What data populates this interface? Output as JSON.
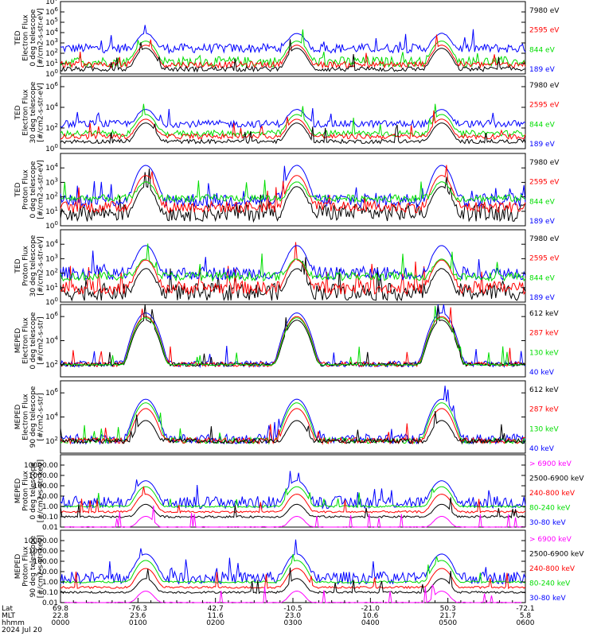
{
  "chart_data": {
    "type": "line",
    "panels": [
      {
        "ylabel": [
          "TED",
          "Electron Flux",
          "0 deg telescope",
          "[#/cm2-s-str-eV]"
        ],
        "ylim": [
          1,
          10000000
        ],
        "scale": "log",
        "yticks": [
          {
            "v": 1,
            "t": "10",
            "e": "0"
          },
          {
            "v": 10,
            "t": "10",
            "e": "1"
          },
          {
            "v": 100,
            "t": "10",
            "e": "2"
          },
          {
            "v": 1000,
            "t": "10",
            "e": "3"
          },
          {
            "v": 10000,
            "t": "10",
            "e": "4"
          },
          {
            "v": 100000,
            "t": "10",
            "e": "5"
          },
          {
            "v": 1000000,
            "t": "10",
            "e": "6"
          },
          {
            "v": 10000000,
            "t": "10",
            "e": "7"
          }
        ],
        "legend": [
          {
            "name": "7980 eV",
            "color": "#000000"
          },
          {
            "name": "2595 eV",
            "color": "#ff0000"
          },
          {
            "name": "844 eV",
            "color": "#00dd00"
          },
          {
            "name": "189 eV",
            "color": "#0000ff"
          }
        ],
        "series": [
          {
            "color": "#0000ff",
            "base": 300,
            "peak": 8000,
            "noise": 0.9
          },
          {
            "color": "#00dd00",
            "base": 15,
            "peak": 1500,
            "noise": 1.0
          },
          {
            "color": "#ff0000",
            "base": 8,
            "peak": 600,
            "noise": 0.6
          },
          {
            "color": "#000000",
            "base": 3,
            "peak": 300,
            "noise": 0.5
          }
        ]
      },
      {
        "ylabel": [
          "TED",
          "Electron Flux",
          "30 deg telescope",
          "[#/cm2-s-str-eV]"
        ],
        "ylim": [
          1,
          10000000
        ],
        "scale": "log",
        "yticks": [
          {
            "v": 1,
            "t": "10",
            "e": "0"
          },
          {
            "v": 100,
            "t": "10",
            "e": "2"
          },
          {
            "v": 10000,
            "t": "10",
            "e": "4"
          },
          {
            "v": 1000000,
            "t": "10",
            "e": "6"
          }
        ],
        "legend": [
          {
            "name": "7980 eV",
            "color": "#000000"
          },
          {
            "name": "2595 eV",
            "color": "#ff0000"
          },
          {
            "name": "844 eV",
            "color": "#00dd00"
          },
          {
            "name": "189 eV",
            "color": "#0000ff"
          }
        ],
        "series": [
          {
            "color": "#0000ff",
            "base": 250,
            "peak": 6000,
            "noise": 0.7
          },
          {
            "color": "#00dd00",
            "base": 30,
            "peak": 2000,
            "noise": 0.6
          },
          {
            "color": "#ff0000",
            "base": 15,
            "peak": 700,
            "noise": 0.5
          },
          {
            "color": "#000000",
            "base": 5,
            "peak": 300,
            "noise": 0.4
          }
        ]
      },
      {
        "ylabel": [
          "TED",
          "Proton Flux",
          "0 deg telescope",
          "[#/cm2-s-str-eV]"
        ],
        "ylim": [
          1,
          100000
        ],
        "scale": "log",
        "yticks": [
          {
            "v": 1,
            "t": "10",
            "e": "0"
          },
          {
            "v": 10,
            "t": "10",
            "e": "1"
          },
          {
            "v": 100,
            "t": "10",
            "e": "2"
          },
          {
            "v": 1000,
            "t": "10",
            "e": "3"
          },
          {
            "v": 10000,
            "t": "10",
            "e": "4"
          }
        ],
        "legend": [
          {
            "name": "7980 eV",
            "color": "#000000"
          },
          {
            "name": "2595 eV",
            "color": "#ff0000"
          },
          {
            "name": "844 eV",
            "color": "#00dd00"
          },
          {
            "name": "189 eV",
            "color": "#0000ff"
          }
        ],
        "series": [
          {
            "color": "#000000",
            "base": 8,
            "peak": 500,
            "noise": 1.2
          },
          {
            "color": "#0000ff",
            "base": 60,
            "peak": 15000,
            "noise": 1.0
          },
          {
            "color": "#ff0000",
            "base": 20,
            "peak": 3000,
            "noise": 0.8
          },
          {
            "color": "#00dd00",
            "base": 80,
            "peak": 1000,
            "noise": 0.5
          }
        ]
      },
      {
        "ylabel": [
          "TED",
          "Proton Flux",
          "30 deg telescope",
          "[#/cm2-s-str-eV]"
        ],
        "ylim": [
          1,
          100000
        ],
        "scale": "log",
        "yticks": [
          {
            "v": 1,
            "t": "10",
            "e": "0"
          },
          {
            "v": 10,
            "t": "10",
            "e": "1"
          },
          {
            "v": 100,
            "t": "10",
            "e": "2"
          },
          {
            "v": 1000,
            "t": "10",
            "e": "3"
          },
          {
            "v": 10000,
            "t": "10",
            "e": "4"
          }
        ],
        "legend": [
          {
            "name": "7980 eV",
            "color": "#000000"
          },
          {
            "name": "2595 eV",
            "color": "#ff0000"
          },
          {
            "name": "844 eV",
            "color": "#00dd00"
          },
          {
            "name": "189 eV",
            "color": "#0000ff"
          }
        ],
        "series": [
          {
            "color": "#000000",
            "base": 5,
            "peak": 200,
            "noise": 1.2
          },
          {
            "color": "#ff0000",
            "base": 10,
            "peak": 800,
            "noise": 0.9
          },
          {
            "color": "#0000ff",
            "base": 100,
            "peak": 8000,
            "noise": 0.9
          },
          {
            "color": "#00dd00",
            "base": 60,
            "peak": 900,
            "noise": 0.6
          }
        ]
      },
      {
        "ylabel": [
          "MEPED",
          "Electron Flux",
          "0 deg telescope",
          "[#/cm2-s-str]"
        ],
        "ylim": [
          10,
          10000000
        ],
        "scale": "log",
        "yticks": [
          {
            "v": 100,
            "t": "10",
            "e": "2"
          },
          {
            "v": 10000,
            "t": "10",
            "e": "4"
          },
          {
            "v": 1000000,
            "t": "10",
            "e": "6"
          }
        ],
        "legend": [
          {
            "name": "612 keV",
            "color": "#000000"
          },
          {
            "name": "287 keV",
            "color": "#ff0000"
          },
          {
            "name": "130 keV",
            "color": "#00dd00"
          },
          {
            "name": "40 keV",
            "color": "#0000ff"
          }
        ],
        "series": [
          {
            "color": "#0000ff",
            "base": 120,
            "peak": 2000000,
            "noise": 0.5
          },
          {
            "color": "#ff0000",
            "base": 110,
            "peak": 1000000,
            "noise": 0.4
          },
          {
            "color": "#000000",
            "base": 105,
            "peak": 500000,
            "noise": 0.3
          },
          {
            "color": "#00dd00",
            "base": 100,
            "peak": 800000,
            "noise": 0.1
          }
        ]
      },
      {
        "ylabel": [
          "MEPED",
          "Electron Flux",
          "90 deg telescope",
          "[#/cm2-s-str]"
        ],
        "ylim": [
          10,
          10000000
        ],
        "scale": "log",
        "yticks": [
          {
            "v": 100,
            "t": "10",
            "e": "2"
          },
          {
            "v": 10000,
            "t": "10",
            "e": "4"
          },
          {
            "v": 1000000,
            "t": "10",
            "e": "6"
          }
        ],
        "legend": [
          {
            "name": "612 keV",
            "color": "#000000"
          },
          {
            "name": "287 keV",
            "color": "#ff0000"
          },
          {
            "name": "130 keV",
            "color": "#00dd00"
          },
          {
            "name": "40 keV",
            "color": "#0000ff"
          }
        ],
        "series": [
          {
            "color": "#0000ff",
            "base": 150,
            "peak": 300000,
            "noise": 0.8
          },
          {
            "color": "#00dd00",
            "base": 110,
            "peak": 150000,
            "noise": 0.5
          },
          {
            "color": "#ff0000",
            "base": 110,
            "peak": 50000,
            "noise": 0.5
          },
          {
            "color": "#000000",
            "base": 100,
            "peak": 5000,
            "noise": 0.4
          }
        ]
      },
      {
        "ylabel": [
          "MEPED",
          "Proton Flux",
          "0 deg telescope",
          "[#/cm2-s-str-keV]"
        ],
        "ylim": [
          0.01,
          100000
        ],
        "scale": "log",
        "yticks": [
          {
            "v": 0.01,
            "t": "0.01"
          },
          {
            "v": 0.1,
            "t": "0.10"
          },
          {
            "v": 1,
            "t": "1.00"
          },
          {
            "v": 10,
            "t": "10.00"
          },
          {
            "v": 100,
            "t": "100.00"
          },
          {
            "v": 1000,
            "t": "1000.00"
          },
          {
            "v": 10000,
            "t": "10000.00"
          }
        ],
        "legend": [
          {
            "name": "> 6900 keV",
            "color": "#ff00ff"
          },
          {
            "name": "2500-6900 keV",
            "color": "#000000"
          },
          {
            "name": "240-800 keV",
            "color": "#ff0000"
          },
          {
            "name": "80-240 keV",
            "color": "#00dd00"
          },
          {
            "name": "30-80 keV",
            "color": "#0000ff"
          }
        ],
        "series": [
          {
            "color": "#0000ff",
            "base": 2.5,
            "peak": 300,
            "noise": 1.2
          },
          {
            "color": "#00dd00",
            "base": 1.0,
            "peak": 80,
            "noise": 0.2
          },
          {
            "color": "#ff0000",
            "base": 0.3,
            "peak": 15,
            "noise": 0.2
          },
          {
            "color": "#000000",
            "base": 0.1,
            "peak": 1.5,
            "noise": 0.2
          },
          {
            "color": "#ff00ff",
            "base": 0.01,
            "peak": 0.1,
            "noise": 0.1
          }
        ]
      },
      {
        "ylabel": [
          "MEPED",
          "Proton Flux",
          "90 deg telescope",
          "[#/cm2-s-str-keV]"
        ],
        "ylim": [
          0.01,
          100000
        ],
        "scale": "log",
        "yticks": [
          {
            "v": 0.01,
            "t": "0.01"
          },
          {
            "v": 0.1,
            "t": "0.10"
          },
          {
            "v": 1,
            "t": "1.00"
          },
          {
            "v": 10,
            "t": "10.00"
          },
          {
            "v": 100,
            "t": "100.00"
          },
          {
            "v": 1000,
            "t": "1000.00"
          },
          {
            "v": 10000,
            "t": "10000.00"
          }
        ],
        "legend": [
          {
            "name": "> 6900 keV",
            "color": "#ff00ff"
          },
          {
            "name": "2500-6900 keV",
            "color": "#000000"
          },
          {
            "name": "240-800 keV",
            "color": "#ff0000"
          },
          {
            "name": "80-240 keV",
            "color": "#00dd00"
          },
          {
            "name": "30-80 keV",
            "color": "#0000ff"
          }
        ],
        "series": [
          {
            "color": "#0000ff",
            "base": 2.5,
            "peak": 500,
            "noise": 1.2
          },
          {
            "color": "#00dd00",
            "base": 1.0,
            "peak": 120,
            "noise": 0.2
          },
          {
            "color": "#ff0000",
            "base": 0.3,
            "peak": 20,
            "noise": 0.2
          },
          {
            "color": "#000000",
            "base": 0.1,
            "peak": 2,
            "noise": 0.2
          },
          {
            "color": "#ff00ff",
            "base": 0.01,
            "peak": 0.12,
            "noise": 0.1
          }
        ]
      }
    ],
    "passes_hours": [
      1.1,
      3.05,
      4.92
    ],
    "x_axis": {
      "xlim_hours": [
        0,
        6
      ],
      "row_labels": [
        "Lat",
        "MLT",
        "hhmm",
        "2024 Jul 20"
      ],
      "ticks": [
        {
          "hour": 0,
          "lat": "69.8",
          "mlt": "22.8",
          "hhmm": "0000"
        },
        {
          "hour": 1,
          "lat": "-76.3",
          "mlt": "23.6",
          "hhmm": "0100"
        },
        {
          "hour": 2,
          "lat": "42.7",
          "mlt": "11.6",
          "hhmm": "0200"
        },
        {
          "hour": 3,
          "lat": "-10.5",
          "mlt": "23.0",
          "hhmm": "0300"
        },
        {
          "hour": 4,
          "lat": "-21.0",
          "mlt": "10.6",
          "hhmm": "0400"
        },
        {
          "hour": 5,
          "lat": "50.3",
          "mlt": "21.7",
          "hhmm": "0500"
        },
        {
          "hour": 6,
          "lat": "-72.1",
          "mlt": "5.8",
          "hhmm": "0600"
        }
      ]
    }
  }
}
